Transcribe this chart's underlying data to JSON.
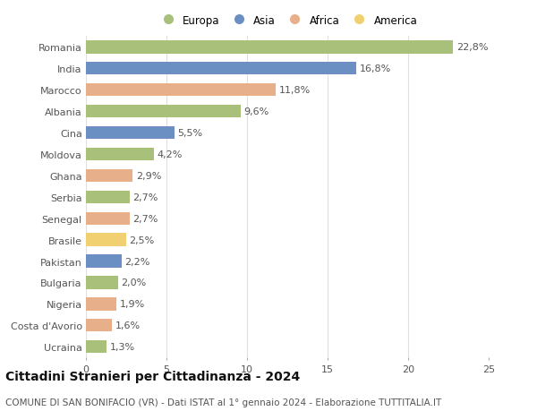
{
  "countries": [
    "Romania",
    "India",
    "Marocco",
    "Albania",
    "Cina",
    "Moldova",
    "Ghana",
    "Serbia",
    "Senegal",
    "Brasile",
    "Pakistan",
    "Bulgaria",
    "Nigeria",
    "Costa d'Avorio",
    "Ucraina"
  ],
  "values": [
    22.8,
    16.8,
    11.8,
    9.6,
    5.5,
    4.2,
    2.9,
    2.7,
    2.7,
    2.5,
    2.2,
    2.0,
    1.9,
    1.6,
    1.3
  ],
  "labels": [
    "22,8%",
    "16,8%",
    "11,8%",
    "9,6%",
    "5,5%",
    "4,2%",
    "2,9%",
    "2,7%",
    "2,7%",
    "2,5%",
    "2,2%",
    "2,0%",
    "1,9%",
    "1,6%",
    "1,3%"
  ],
  "continents": [
    "Europa",
    "Asia",
    "Africa",
    "Europa",
    "Asia",
    "Europa",
    "Africa",
    "Europa",
    "Africa",
    "America",
    "Asia",
    "Europa",
    "Africa",
    "Africa",
    "Europa"
  ],
  "continent_colors": {
    "Europa": "#a8c07a",
    "Asia": "#6b8fc2",
    "Africa": "#e8b08a",
    "America": "#f0d070"
  },
  "legend_order": [
    "Europa",
    "Asia",
    "Africa",
    "America"
  ],
  "title": "Cittadini Stranieri per Cittadinanza - 2024",
  "subtitle": "COMUNE DI SAN BONIFACIO (VR) - Dati ISTAT al 1° gennaio 2024 - Elaborazione TUTTITALIA.IT",
  "xlim": [
    0,
    25
  ],
  "xticks": [
    0,
    5,
    10,
    15,
    20,
    25
  ],
  "background_color": "#ffffff",
  "grid_color": "#e0e0e0",
  "bar_height": 0.6,
  "title_fontsize": 10,
  "subtitle_fontsize": 7.5,
  "tick_fontsize": 8,
  "label_fontsize": 8,
  "legend_fontsize": 8.5
}
